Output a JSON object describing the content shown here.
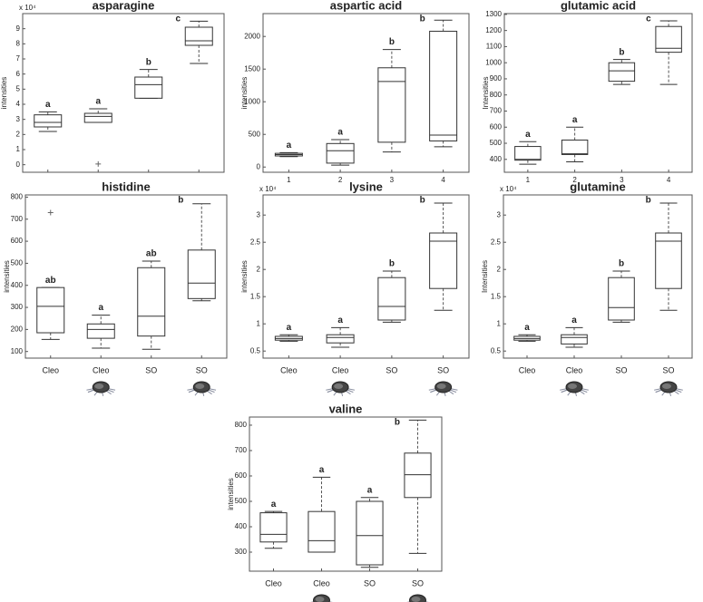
{
  "chart_data": [
    {
      "type": "box",
      "title": "asparagine",
      "y_label": "intensities",
      "y_multiplier": "x 10⁴",
      "categories": [
        null,
        null,
        null,
        null
      ],
      "ylim": [
        -0.5,
        10
      ],
      "yticks": [
        0,
        1,
        2,
        3,
        4,
        5,
        6,
        7,
        8,
        9
      ],
      "boxes": [
        {
          "min": 2.2,
          "q1": 2.5,
          "median": 2.8,
          "q3": 3.3,
          "max": 3.5,
          "outliers": [],
          "letter": "a"
        },
        {
          "min": 2.8,
          "q1": 2.8,
          "median": 3.2,
          "q3": 3.4,
          "max": 3.7,
          "outliers": [
            0.05
          ],
          "letter": "a"
        },
        {
          "min": 4.4,
          "q1": 4.4,
          "median": 5.3,
          "q3": 5.8,
          "max": 6.3,
          "outliers": [],
          "letter": "b"
        },
        {
          "min": 6.7,
          "q1": 7.9,
          "median": 8.2,
          "q3": 9.1,
          "max": 9.5,
          "outliers": [],
          "letter": "c"
        }
      ]
    },
    {
      "type": "box",
      "title": "aspartic acid",
      "y_label": "intensities",
      "categories": [
        "1",
        "2",
        "3",
        "4"
      ],
      "ylim": [
        -80,
        2350
      ],
      "yticks": [
        0,
        500,
        1000,
        1500,
        2000
      ],
      "boxes": [
        {
          "min": 160,
          "q1": 170,
          "median": 190,
          "q3": 210,
          "max": 220,
          "outliers": [],
          "letter": "a"
        },
        {
          "min": 30,
          "q1": 60,
          "median": 250,
          "q3": 360,
          "max": 420,
          "outliers": [],
          "letter": "a"
        },
        {
          "min": 230,
          "q1": 380,
          "median": 1310,
          "q3": 1520,
          "max": 1800,
          "outliers": [],
          "letter": "b"
        },
        {
          "min": 310,
          "q1": 400,
          "median": 490,
          "q3": 2080,
          "max": 2250,
          "outliers": [],
          "letter": "b"
        }
      ]
    },
    {
      "type": "box",
      "title": "glutamic acid",
      "y_label": "Intensities",
      "categories": [
        "1",
        "2",
        "3",
        "4"
      ],
      "ylim": [
        320,
        1305
      ],
      "yticks": [
        400,
        500,
        600,
        700,
        800,
        900,
        1000,
        1100,
        1200,
        1300
      ],
      "boxes": [
        {
          "min": 370,
          "q1": 395,
          "median": 400,
          "q3": 480,
          "max": 510,
          "outliers": [],
          "letter": "a"
        },
        {
          "min": 385,
          "q1": 430,
          "median": 435,
          "q3": 520,
          "max": 600,
          "outliers": [],
          "letter": "a"
        },
        {
          "min": 865,
          "q1": 885,
          "median": 950,
          "q3": 1000,
          "max": 1020,
          "outliers": [],
          "letter": "b"
        },
        {
          "min": 865,
          "q1": 1065,
          "median": 1090,
          "q3": 1225,
          "max": 1260,
          "outliers": [],
          "letter": "c"
        }
      ]
    },
    {
      "type": "box",
      "title": "histidine",
      "y_label": "intensities",
      "categories": [
        "Cleo",
        "Cleo",
        "SO",
        "SO"
      ],
      "ylim": [
        70,
        810
      ],
      "yticks": [
        100,
        200,
        300,
        400,
        500,
        600,
        700,
        800
      ],
      "boxes": [
        {
          "min": 155,
          "q1": 185,
          "median": 305,
          "q3": 390,
          "max": 390,
          "outliers": [
            730
          ],
          "letter": "ab"
        },
        {
          "min": 115,
          "q1": 160,
          "median": 200,
          "q3": 225,
          "max": 265,
          "outliers": [],
          "letter": "a"
        },
        {
          "min": 110,
          "q1": 170,
          "median": 260,
          "q3": 480,
          "max": 510,
          "outliers": [],
          "letter": "ab"
        },
        {
          "min": 330,
          "q1": 340,
          "median": 410,
          "q3": 560,
          "max": 770,
          "outliers": [],
          "letter": "b"
        }
      ]
    },
    {
      "type": "box",
      "title": "lysine",
      "y_label": "intensities",
      "y_multiplier": "x 10⁴",
      "categories": [
        "Cleo",
        "Cleo",
        "SO",
        "SO"
      ],
      "ylim": [
        0.37,
        3.37
      ],
      "yticks": [
        0.5,
        1,
        1.5,
        2,
        2.5,
        3
      ],
      "boxes": [
        {
          "min": 0.68,
          "q1": 0.7,
          "median": 0.73,
          "q3": 0.77,
          "max": 0.8,
          "outliers": [],
          "letter": "a"
        },
        {
          "min": 0.57,
          "q1": 0.65,
          "median": 0.75,
          "q3": 0.8,
          "max": 0.93,
          "outliers": [],
          "letter": "a"
        },
        {
          "min": 1.03,
          "q1": 1.07,
          "median": 1.32,
          "q3": 1.85,
          "max": 1.97,
          "outliers": [],
          "letter": "b"
        },
        {
          "min": 1.25,
          "q1": 1.65,
          "median": 2.52,
          "q3": 2.67,
          "max": 3.22,
          "outliers": [],
          "letter": "b"
        }
      ]
    },
    {
      "type": "box",
      "title": "glutamine",
      "y_label": "Intensities",
      "y_multiplier": "x 10⁴",
      "categories": [
        "Cleo",
        "Cleo",
        "SO",
        "SO"
      ],
      "ylim": [
        0.37,
        3.37
      ],
      "yticks": [
        0.5,
        1,
        1.5,
        2,
        2.5,
        3
      ],
      "boxes": [
        {
          "min": 0.68,
          "q1": 0.7,
          "median": 0.73,
          "q3": 0.77,
          "max": 0.8,
          "outliers": [],
          "letter": "a"
        },
        {
          "min": 0.57,
          "q1": 0.63,
          "median": 0.75,
          "q3": 0.8,
          "max": 0.93,
          "outliers": [],
          "letter": "a"
        },
        {
          "min": 1.03,
          "q1": 1.07,
          "median": 1.3,
          "q3": 1.85,
          "max": 1.97,
          "outliers": [],
          "letter": "b"
        },
        {
          "min": 1.25,
          "q1": 1.65,
          "median": 2.52,
          "q3": 2.67,
          "max": 3.22,
          "outliers": [],
          "letter": "b"
        }
      ]
    },
    {
      "type": "box",
      "title": "valine",
      "y_label": "intensities",
      "categories": [
        "Cleo",
        "Cleo",
        "SO",
        "SO"
      ],
      "ylim": [
        225,
        832
      ],
      "yticks": [
        300,
        400,
        500,
        600,
        700,
        800
      ],
      "boxes": [
        {
          "min": 315,
          "q1": 340,
          "median": 370,
          "q3": 455,
          "max": 460,
          "outliers": [],
          "letter": "a"
        },
        {
          "min": 300,
          "q1": 300,
          "median": 345,
          "q3": 460,
          "max": 595,
          "outliers": [],
          "letter": "a"
        },
        {
          "min": 240,
          "q1": 250,
          "median": 365,
          "q3": 500,
          "max": 515,
          "outliers": [],
          "letter": "a"
        },
        {
          "min": 295,
          "q1": 515,
          "median": 605,
          "q3": 690,
          "max": 820,
          "outliers": [],
          "letter": "b"
        }
      ]
    }
  ]
}
